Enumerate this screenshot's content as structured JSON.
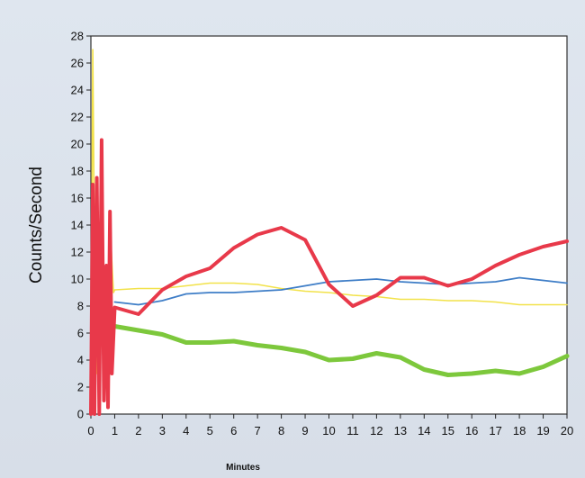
{
  "chart_data": {
    "type": "line",
    "title": "",
    "xlabel": "Minutes",
    "ylabel": "Counts/Second",
    "xlim": [
      0,
      20
    ],
    "ylim": [
      0,
      28
    ],
    "x_ticks": [
      0,
      1,
      2,
      3,
      4,
      5,
      6,
      7,
      8,
      9,
      10,
      11,
      12,
      13,
      14,
      15,
      16,
      17,
      18,
      19,
      20
    ],
    "y_ticks": [
      0,
      2,
      4,
      6,
      8,
      10,
      12,
      14,
      16,
      18,
      20,
      22,
      24,
      26,
      28
    ],
    "grid": false,
    "legend": "none",
    "series": [
      {
        "color": "#f2e24a",
        "width": 1.6,
        "x": [
          0,
          0.08,
          0.15,
          0.25,
          0.35,
          0.5,
          0.65,
          0.8,
          0.95,
          1,
          2,
          3,
          4,
          5,
          6,
          7,
          8,
          9,
          10,
          11,
          12,
          13,
          14,
          15,
          16,
          17,
          18,
          19,
          20
        ],
        "y": [
          0,
          27,
          12,
          3,
          6,
          12,
          4,
          14,
          9,
          9.2,
          9.3,
          9.3,
          9.5,
          9.7,
          9.7,
          9.6,
          9.3,
          9.1,
          9.0,
          8.8,
          8.7,
          8.5,
          8.5,
          8.4,
          8.4,
          8.3,
          8.1,
          8.1,
          8.1
        ]
      },
      {
        "color": "#3f7ec7",
        "width": 1.8,
        "x": [
          1,
          2,
          3,
          4,
          5,
          6,
          7,
          8,
          9,
          10,
          11,
          12,
          13,
          14,
          15,
          16,
          17,
          18,
          19,
          20
        ],
        "y": [
          8.3,
          8.1,
          8.4,
          8.9,
          9.0,
          9.0,
          9.1,
          9.2,
          9.5,
          9.8,
          9.9,
          10.0,
          9.8,
          9.7,
          9.6,
          9.7,
          9.8,
          10.1,
          9.9,
          9.7
        ]
      },
      {
        "color": "#7dc83c",
        "width": 5,
        "x": [
          1,
          2,
          3,
          4,
          5,
          6,
          7,
          8,
          9,
          10,
          11,
          12,
          13,
          14,
          15,
          16,
          17,
          18,
          19,
          20
        ],
        "y": [
          6.5,
          6.2,
          5.9,
          5.3,
          5.3,
          5.4,
          5.1,
          4.9,
          4.6,
          4.0,
          4.1,
          4.5,
          4.2,
          3.3,
          2.9,
          3.0,
          3.2,
          3.0,
          3.5,
          4.3
        ]
      },
      {
        "color": "#e8394a",
        "width": 4,
        "x": [
          0,
          0.08,
          0.15,
          0.25,
          0.35,
          0.45,
          0.55,
          0.65,
          0.72,
          0.8,
          0.88,
          1,
          2,
          3,
          4,
          5,
          6,
          7,
          8,
          9,
          10,
          11,
          12,
          13,
          14,
          15,
          16,
          17,
          18,
          19,
          20
        ],
        "y": [
          0,
          17,
          0,
          17.5,
          0,
          20.3,
          1,
          11,
          0.5,
          15,
          3,
          7.9,
          7.4,
          9.2,
          10.2,
          10.8,
          12.3,
          13.3,
          13.8,
          12.9,
          9.6,
          8.0,
          8.8,
          10.1,
          10.1,
          9.5,
          10.0,
          11.0,
          11.8,
          12.4,
          12.8
        ]
      }
    ]
  }
}
